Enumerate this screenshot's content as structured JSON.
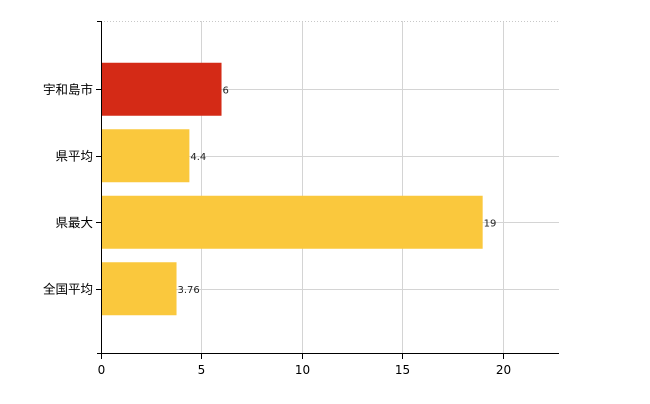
{
  "chart_data": {
    "type": "bar",
    "orientation": "horizontal",
    "categories": [
      "宇和島市",
      "県平均",
      "県最大",
      "全国平均"
    ],
    "values": [
      6,
      4.4,
      19,
      3.76
    ],
    "value_labels": [
      "6",
      "4.4",
      "19",
      "3.76"
    ],
    "bar_colors": [
      "#d42a16",
      "#fac83d",
      "#fac83d",
      "#fac83d"
    ],
    "xlim": [
      0,
      22.8
    ],
    "xticks": [
      0,
      5,
      10,
      15,
      20
    ],
    "xtick_labels": [
      "0",
      "5",
      "10",
      "15",
      "20"
    ],
    "grid": true,
    "legend": "none"
  }
}
